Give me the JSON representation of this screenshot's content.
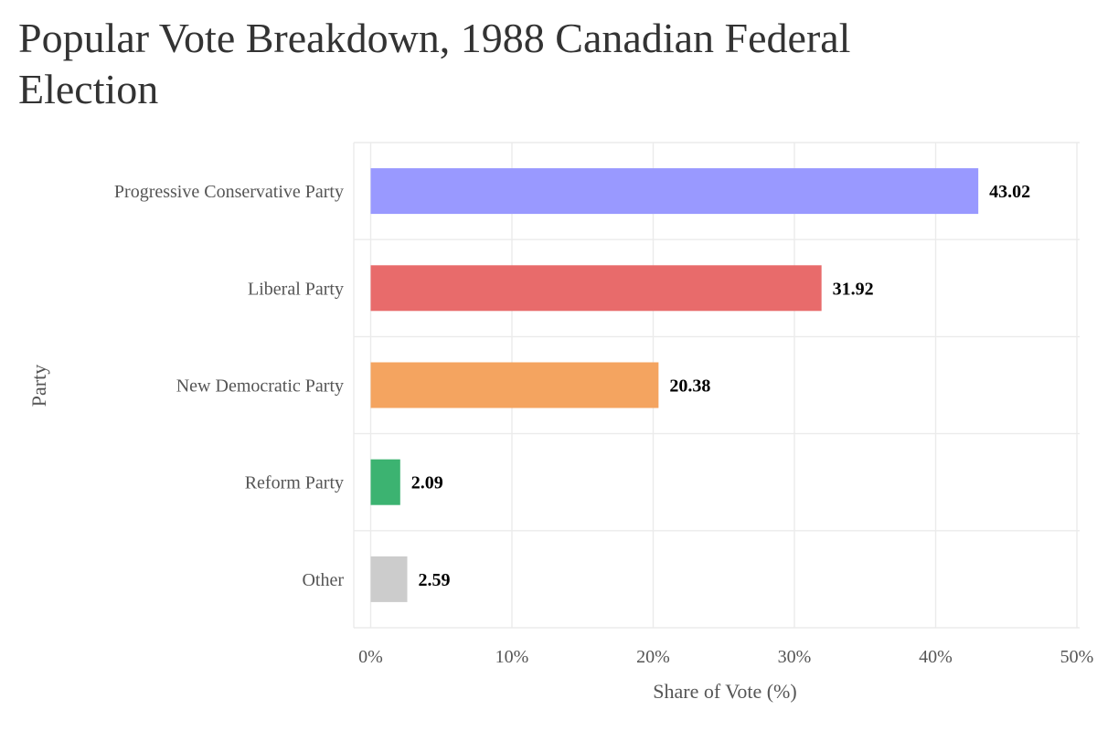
{
  "chart_data": {
    "type": "bar",
    "orientation": "horizontal",
    "title": "Popular Vote Breakdown, 1988 Canadian Federal Election",
    "xlabel": "Share of Vote (%)",
    "ylabel": "Party",
    "xlim": [
      0,
      50
    ],
    "xticks": [
      0,
      10,
      20,
      30,
      40,
      50
    ],
    "xtick_labels": [
      "0%",
      "10%",
      "20%",
      "30%",
      "40%",
      "50%"
    ],
    "grid": true,
    "legend": "none",
    "categories": [
      "Progressive Conservative Party",
      "Liberal Party",
      "New Democratic Party",
      "Reform Party",
      "Other"
    ],
    "values": [
      43.02,
      31.92,
      20.38,
      2.09,
      2.59
    ],
    "value_labels": [
      "43.02",
      "31.92",
      "20.38",
      "2.09",
      "2.59"
    ],
    "colors": [
      "#9999ff",
      "#e86b6b",
      "#f4a460",
      "#3cb371",
      "#cccccc"
    ]
  }
}
